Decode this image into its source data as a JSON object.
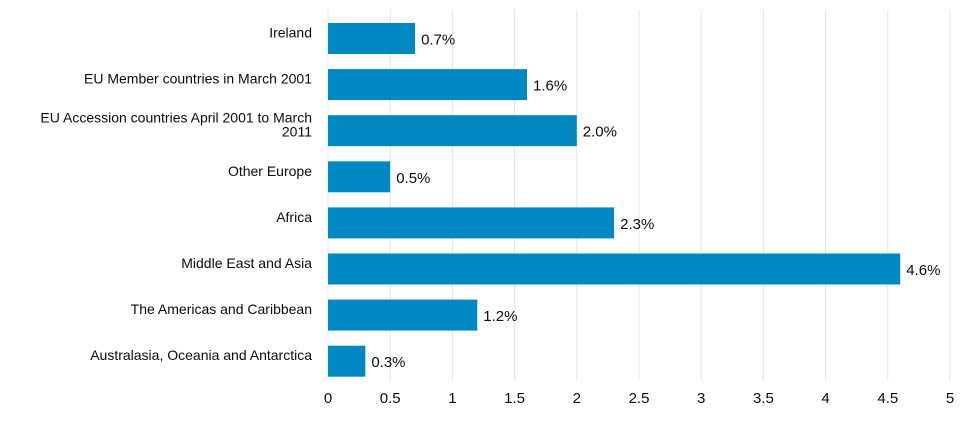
{
  "chart_data": {
    "type": "bar",
    "orientation": "horizontal",
    "categories": [
      [
        "Ireland"
      ],
      [
        "EU Member countries in March 2001"
      ],
      [
        "EU Accession countries April 2001 to March",
        "2011"
      ],
      [
        "Other Europe"
      ],
      [
        "Africa"
      ],
      [
        "Middle East and Asia"
      ],
      [
        "The Americas and Caribbean"
      ],
      [
        "Australasia, Oceania and Antarctica"
      ]
    ],
    "values": [
      0.7,
      1.6,
      2.0,
      0.5,
      2.3,
      4.6,
      1.2,
      0.3
    ],
    "value_labels": [
      "0.7%",
      "1.6%",
      "2.0%",
      "0.5%",
      "2.3%",
      "4.6%",
      "1.2%",
      "0.3%"
    ],
    "x_ticks": [
      "0",
      "0.5",
      "1",
      "1.5",
      "2",
      "2.5",
      "3",
      "3.5",
      "4",
      "4.5",
      "5"
    ],
    "xlim": [
      0,
      5
    ],
    "grid": "vertical",
    "legend": "none",
    "bar_color": "#0088c2",
    "grid_color": "#e4e4e4"
  }
}
